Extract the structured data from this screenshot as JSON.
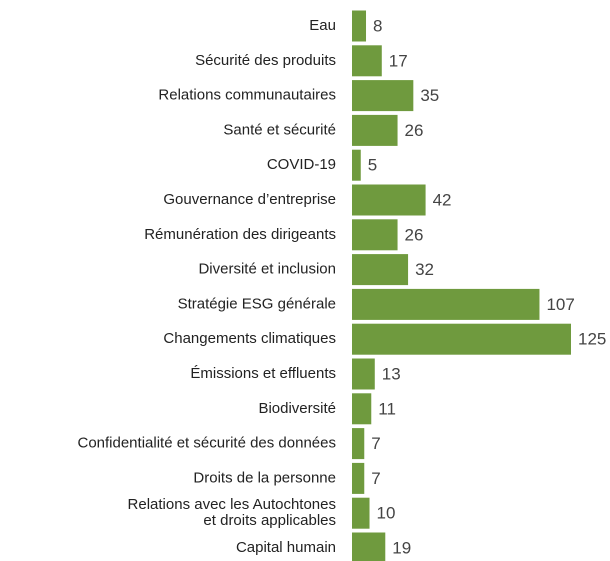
{
  "chart_data": {
    "type": "bar",
    "orientation": "horizontal",
    "categories": [
      [
        "Eau"
      ],
      [
        "Sécurité des produits"
      ],
      [
        "Relations communautaires"
      ],
      [
        "Santé et sécurité"
      ],
      [
        "COVID-19"
      ],
      [
        "Gouvernance d’entreprise"
      ],
      [
        "Rémunération des dirigeants"
      ],
      [
        "Diversité et inclusion"
      ],
      [
        "Stratégie ESG générale"
      ],
      [
        "Changements climatiques"
      ],
      [
        "Émissions et effluents"
      ],
      [
        "Biodiversité"
      ],
      [
        "Confidentialité et sécurité des données"
      ],
      [
        "Droits de la personne"
      ],
      [
        "Relations avec les Autochtones",
        "et droits applicables"
      ],
      [
        "Capital humain"
      ]
    ],
    "values": [
      8,
      17,
      35,
      26,
      5,
      42,
      26,
      32,
      107,
      125,
      13,
      11,
      7,
      7,
      10,
      19
    ],
    "bar_color": "#6f9a3e",
    "grid": false,
    "legend": "none"
  }
}
